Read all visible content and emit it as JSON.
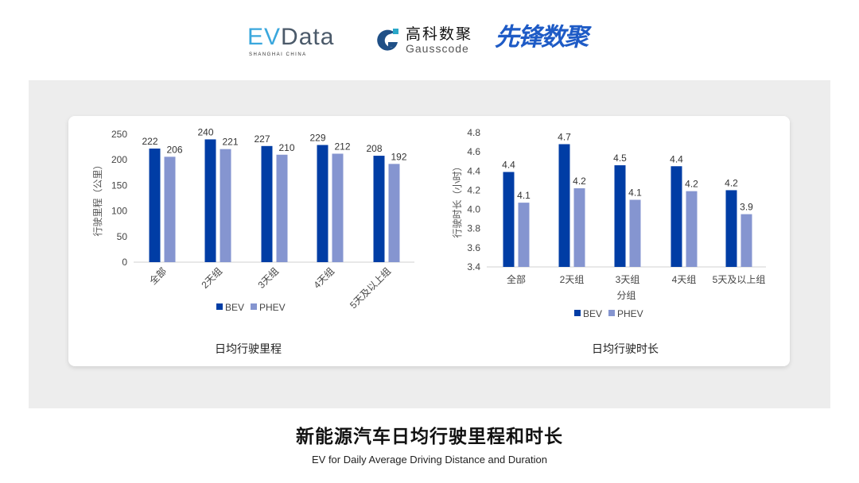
{
  "logos": {
    "evdata": {
      "text_a": "EV",
      "text_b": "Data",
      "sub": "SHANGHAI CHINA"
    },
    "gauss": {
      "cn": "高科数聚",
      "en": "Gausscode"
    },
    "xianfeng": {
      "cn": "先锋数聚"
    }
  },
  "footer": {
    "title": "新能源汽车日均行驶里程和时长",
    "subtitle": "EV for Daily Average Driving Distance and Duration"
  },
  "chart_data": [
    {
      "type": "bar",
      "title": "日均行驶里程",
      "ylabel": "行驶里程（公里）",
      "xlabel": "",
      "ylim": [
        0,
        250
      ],
      "yticks": [
        0,
        50,
        100,
        150,
        200,
        250
      ],
      "ytick_labels": [
        "0",
        "50",
        "100",
        "150",
        "200",
        "250"
      ],
      "categories": [
        "全部",
        "2天组",
        "3天组",
        "4天组",
        "5天及以上组"
      ],
      "legend": "bottom",
      "grid": false,
      "series": [
        {
          "name": "BEV",
          "color": "#003da5",
          "values": [
            222,
            240,
            227,
            229,
            208
          ],
          "labels": [
            "222",
            "240",
            "227",
            "229",
            "208"
          ]
        },
        {
          "name": "PHEV",
          "color": "#8595d0",
          "values": [
            206,
            221,
            210,
            212,
            192
          ],
          "labels": [
            "206",
            "221",
            "210",
            "212",
            "192"
          ]
        }
      ]
    },
    {
      "type": "bar",
      "title": "日均行驶时长",
      "ylabel": "行驶时长（小时）",
      "xlabel": "分组",
      "ylim": [
        3.4,
        4.8
      ],
      "yticks": [
        3.4,
        3.6,
        3.8,
        4.0,
        4.2,
        4.4,
        4.6,
        4.8
      ],
      "ytick_labels": [
        "3.4",
        "3.6",
        "3.8",
        "4.0",
        "4.2",
        "4.4",
        "4.6",
        "4.8"
      ],
      "categories": [
        "全部",
        "2天组",
        "3天组",
        "4天组",
        "5天及以上组"
      ],
      "legend": "bottom",
      "grid": false,
      "series": [
        {
          "name": "BEV",
          "color": "#003da5",
          "values": [
            4.39,
            4.68,
            4.46,
            4.45,
            4.2
          ],
          "labels": [
            "4.4",
            "4.7",
            "4.5",
            "4.4",
            "4.2"
          ]
        },
        {
          "name": "PHEV",
          "color": "#8595d0",
          "values": [
            4.07,
            4.22,
            4.1,
            4.19,
            3.95
          ],
          "labels": [
            "4.1",
            "4.2",
            "4.1",
            "4.2",
            "3.9"
          ]
        }
      ]
    }
  ]
}
